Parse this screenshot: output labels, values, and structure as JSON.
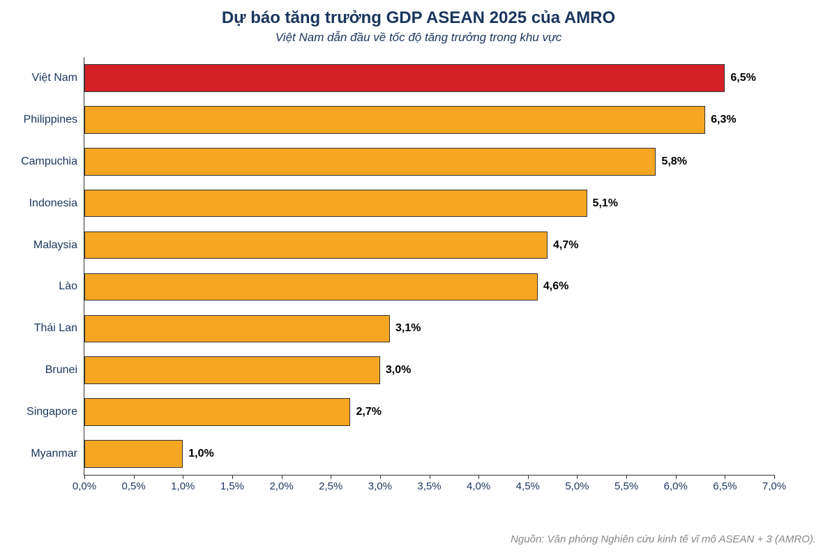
{
  "chart": {
    "type": "bar-horizontal",
    "title": "Dự báo tăng trưởng GDP ASEAN 2025 của AMRO",
    "subtitle": "Việt Nam dẫn đầu về tốc độ tăng trưởng trong khu vực",
    "source": "Nguồn: Văn phòng Nghiên cứu kinh tế vĩ mô ASEAN + 3 (AMRO).",
    "title_color": "#1a355e",
    "title_fontsize": 24,
    "subtitle_fontsize": 17,
    "background_color": "#ffffff",
    "axis_color": "#333333",
    "xlim": [
      0.0,
      7.0
    ],
    "xtick_step": 0.5,
    "xtick_labels": [
      "0,0%",
      "0,5%",
      "1,0%",
      "1,5%",
      "2,0%",
      "2,5%",
      "3,0%",
      "3,5%",
      "4,0%",
      "4,5%",
      "5,0%",
      "5,5%",
      "6,0%",
      "6,5%",
      "7,0%"
    ],
    "bar_height_pct": 66,
    "bar_border_color": "#333333",
    "highlight_color": "#d62027",
    "default_color": "#f5a623",
    "value_label_fontsize": 16,
    "value_label_weight": "bold",
    "category_label_fontsize": 16,
    "category_label_color": "#1a355e",
    "data": [
      {
        "label": "Việt Nam",
        "value": 6.5,
        "display": "6,5%",
        "color": "#d62027"
      },
      {
        "label": "Philippines",
        "value": 6.3,
        "display": "6,3%",
        "color": "#f5a623"
      },
      {
        "label": "Campuchia",
        "value": 5.8,
        "display": "5,8%",
        "color": "#f5a623"
      },
      {
        "label": "Indonesia",
        "value": 5.1,
        "display": "5,1%",
        "color": "#f5a623"
      },
      {
        "label": "Malaysia",
        "value": 4.7,
        "display": "4,7%",
        "color": "#f5a623"
      },
      {
        "label": "Lào",
        "value": 4.6,
        "display": "4,6%",
        "color": "#f5a623"
      },
      {
        "label": "Thái Lan",
        "value": 3.1,
        "display": "3,1%",
        "color": "#f5a623"
      },
      {
        "label": "Brunei",
        "value": 3.0,
        "display": "3,0%",
        "color": "#f5a623"
      },
      {
        "label": "Singapore",
        "value": 2.7,
        "display": "2,7%",
        "color": "#f5a623"
      },
      {
        "label": "Myanmar",
        "value": 1.0,
        "display": "1,0%",
        "color": "#f5a623"
      }
    ]
  }
}
